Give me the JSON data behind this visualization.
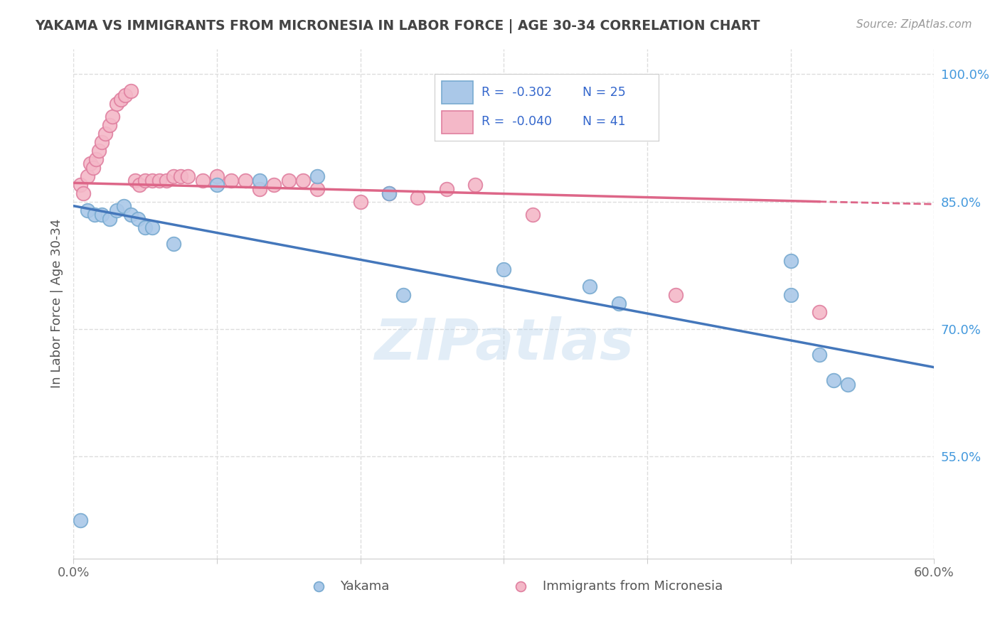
{
  "title": "YAKAMA VS IMMIGRANTS FROM MICRONESIA IN LABOR FORCE | AGE 30-34 CORRELATION CHART",
  "source_text": "Source: ZipAtlas.com",
  "ylabel": "In Labor Force | Age 30-34",
  "xlim": [
    0.0,
    0.6
  ],
  "ylim": [
    0.43,
    1.03
  ],
  "xticks": [
    0.0,
    0.1,
    0.2,
    0.3,
    0.4,
    0.5,
    0.6
  ],
  "xticklabels": [
    "0.0%",
    "",
    "",
    "",
    "",
    "",
    "60.0%"
  ],
  "ytick_positions": [
    0.55,
    0.7,
    0.85,
    1.0
  ],
  "legend_r1": "-0.302",
  "legend_n1": "25",
  "legend_r2": "-0.040",
  "legend_n2": "41",
  "watermark": "ZIPatlas",
  "yakama_color": "#aac8e8",
  "micronesia_color": "#f4b8c8",
  "yakama_edge": "#78aad0",
  "micronesia_edge": "#e080a0",
  "trendline_yakama_color": "#4477bb",
  "trendline_micronesia_color": "#dd6688",
  "background_color": "#ffffff",
  "grid_color": "#dddddd",
  "title_color": "#444444",
  "yakama_x": [
    0.005,
    0.01,
    0.015,
    0.02,
    0.025,
    0.03,
    0.035,
    0.04,
    0.045,
    0.05,
    0.055,
    0.07,
    0.1,
    0.13,
    0.17,
    0.22,
    0.23,
    0.3,
    0.36,
    0.38,
    0.5,
    0.5,
    0.52,
    0.53,
    0.54
  ],
  "yakama_y": [
    0.475,
    0.84,
    0.835,
    0.835,
    0.83,
    0.84,
    0.845,
    0.835,
    0.83,
    0.82,
    0.82,
    0.8,
    0.87,
    0.875,
    0.88,
    0.86,
    0.74,
    0.77,
    0.75,
    0.73,
    0.78,
    0.74,
    0.67,
    0.64,
    0.635
  ],
  "micronesia_x": [
    0.005,
    0.007,
    0.01,
    0.012,
    0.014,
    0.016,
    0.018,
    0.02,
    0.022,
    0.025,
    0.027,
    0.03,
    0.033,
    0.036,
    0.04,
    0.043,
    0.046,
    0.05,
    0.055,
    0.06,
    0.065,
    0.07,
    0.075,
    0.08,
    0.09,
    0.1,
    0.11,
    0.12,
    0.13,
    0.14,
    0.15,
    0.16,
    0.17,
    0.2,
    0.22,
    0.24,
    0.26,
    0.28,
    0.32,
    0.42,
    0.52
  ],
  "micronesia_y": [
    0.87,
    0.86,
    0.88,
    0.895,
    0.89,
    0.9,
    0.91,
    0.92,
    0.93,
    0.94,
    0.95,
    0.965,
    0.97,
    0.975,
    0.98,
    0.875,
    0.87,
    0.875,
    0.875,
    0.875,
    0.875,
    0.88,
    0.88,
    0.88,
    0.875,
    0.88,
    0.875,
    0.875,
    0.865,
    0.87,
    0.875,
    0.875,
    0.865,
    0.85,
    0.86,
    0.855,
    0.865,
    0.87,
    0.835,
    0.74,
    0.72
  ],
  "trendline_yakama_x0": 0.0,
  "trendline_yakama_y0": 0.845,
  "trendline_yakama_x1": 0.6,
  "trendline_yakama_y1": 0.655,
  "trendline_mic_x0": 0.0,
  "trendline_mic_y0": 0.872,
  "trendline_mic_x1_solid": 0.52,
  "trendline_mic_y1_solid": 0.85,
  "trendline_mic_x1_dashed": 0.6,
  "trendline_mic_y1_dashed": 0.847
}
